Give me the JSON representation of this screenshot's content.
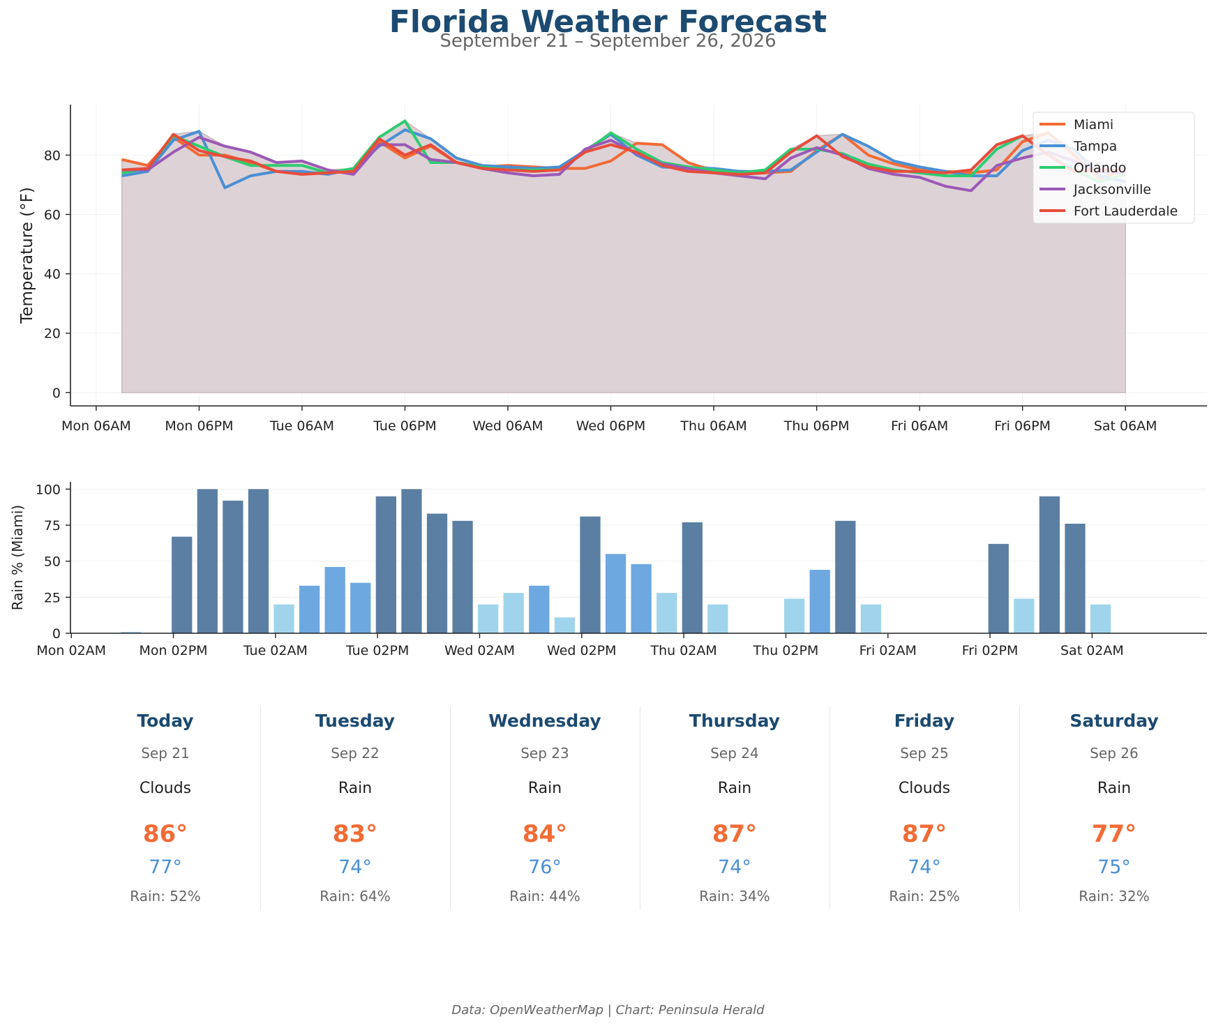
{
  "header": {
    "title": "Florida Weather Forecast",
    "subtitle": "September 21 – September 26, 2026"
  },
  "colors": {
    "Miami": "#f26b35",
    "Tampa": "#4a8fd4",
    "Orlando": "#2ecc71",
    "Jacksonville": "#9b59b6",
    "Fort Lauderdale": "#e74c3c",
    "area_fill": "#dbd1d4",
    "rain_high": "#5a7fa3",
    "rain_mid": "#6ea8e0",
    "rain_low": "#a0d4ec",
    "title": "#1c4a70"
  },
  "chart_data": [
    {
      "type": "line",
      "ylabel": "Temperature (°F)",
      "x_unit": "hours since Mon 00:00",
      "x_ticks": [
        {
          "x": 6,
          "label": "Mon 06AM"
        },
        {
          "x": 18,
          "label": "Mon 06PM"
        },
        {
          "x": 30,
          "label": "Tue 06AM"
        },
        {
          "x": 42,
          "label": "Tue 06PM"
        },
        {
          "x": 54,
          "label": "Wed 06AM"
        },
        {
          "x": 66,
          "label": "Wed 06PM"
        },
        {
          "x": 78,
          "label": "Thu 06AM"
        },
        {
          "x": 90,
          "label": "Thu 06PM"
        },
        {
          "x": 102,
          "label": "Fri 06AM"
        },
        {
          "x": 114,
          "label": "Fri 06PM"
        },
        {
          "x": 126,
          "label": "Sat 06AM"
        }
      ],
      "xlim": [
        3,
        135.5
      ],
      "y_ticks": [
        0,
        20,
        40,
        60,
        80
      ],
      "ylim": [
        -4.5,
        97
      ],
      "legend_position": "top-right",
      "grid": true,
      "x": [
        9,
        12,
        15,
        18,
        21,
        24,
        27,
        30,
        33,
        36,
        39,
        42,
        45,
        48,
        51,
        54,
        57,
        60,
        63,
        66,
        69,
        72,
        75,
        78,
        81,
        84,
        87,
        90,
        93,
        96,
        99,
        102,
        105,
        108,
        111,
        114,
        117,
        120,
        123,
        126
      ],
      "series": [
        {
          "name": "Miami",
          "values": [
            78.5,
            76.5,
            86,
            80,
            80,
            77.5,
            74.5,
            74,
            74,
            74.5,
            84.5,
            79,
            83,
            77.5,
            76,
            76.5,
            76,
            75.5,
            75.5,
            78,
            84,
            83.5,
            77.5,
            74.5,
            74.5,
            74,
            74.5,
            81.5,
            87,
            80,
            77,
            75,
            74.5,
            74,
            75,
            84.5,
            87.5,
            80,
            72,
            75
          ]
        },
        {
          "name": "Tampa",
          "values": [
            73,
            74.5,
            85,
            88,
            69,
            73,
            74.5,
            74.5,
            73.5,
            75.5,
            83,
            88.5,
            85.5,
            79,
            76.5,
            76,
            75.5,
            76,
            81.5,
            87,
            80,
            76,
            75.5,
            75.5,
            74.5,
            74.5,
            75,
            81,
            87,
            83,
            78,
            76,
            74.5,
            73,
            73,
            81.5,
            85,
            82,
            73,
            71
          ]
        },
        {
          "name": "Orlando",
          "values": [
            74,
            75.5,
            86.5,
            83,
            79.5,
            76.5,
            76.5,
            76.5,
            74,
            75.5,
            86,
            91.5,
            77.5,
            77.5,
            76,
            75,
            75,
            75,
            81,
            87.5,
            82,
            77.5,
            76,
            75,
            74,
            75,
            82,
            82,
            80.5,
            77,
            75,
            74,
            73,
            73,
            82,
            86.5,
            80,
            75,
            71,
            73.5
          ]
        },
        {
          "name": "Jacksonville",
          "values": [
            75,
            75,
            81,
            86,
            83,
            81,
            77.5,
            78,
            75,
            73.5,
            83.5,
            83.5,
            78.5,
            77.5,
            75.5,
            74,
            73,
            73.5,
            82,
            85,
            80.5,
            77,
            75.5,
            74,
            73,
            72,
            79,
            82.5,
            80,
            75.5,
            73.5,
            72.5,
            69.5,
            68,
            76.5,
            79,
            81,
            78,
            74.5,
            74
          ]
        },
        {
          "name": "Fort Lauderdale",
          "values": [
            75,
            75.5,
            87,
            81.5,
            79.5,
            78,
            74.5,
            73.5,
            74,
            74.5,
            85.5,
            80,
            83.5,
            77.5,
            75.5,
            75,
            74.5,
            75,
            81,
            83.5,
            81,
            76.5,
            74.5,
            74,
            73.5,
            74,
            81,
            86.5,
            79.5,
            76,
            74.5,
            74.5,
            74,
            75,
            83.5,
            86.5,
            80,
            74.5,
            75,
            75
          ]
        }
      ]
    },
    {
      "type": "bar",
      "ylabel": "Rain % (Miami)",
      "x_unit": "hours since Mon 00:00",
      "x_ticks": [
        {
          "x": 2,
          "label": "Mon 02AM"
        },
        {
          "x": 14,
          "label": "Mon 02PM"
        },
        {
          "x": 26,
          "label": "Tue 02AM"
        },
        {
          "x": 38,
          "label": "Tue 02PM"
        },
        {
          "x": 50,
          "label": "Wed 02AM"
        },
        {
          "x": 62,
          "label": "Wed 02PM"
        },
        {
          "x": 74,
          "label": "Thu 02AM"
        },
        {
          "x": 86,
          "label": "Thu 02PM"
        },
        {
          "x": 98,
          "label": "Fri 02AM"
        },
        {
          "x": 110,
          "label": "Fri 02PM"
        },
        {
          "x": 122,
          "label": "Sat 02AM"
        }
      ],
      "xlim": [
        1.9,
        135.5
      ],
      "y_ticks": [
        0,
        25,
        50,
        75,
        100
      ],
      "ylim": [
        0,
        105
      ],
      "grid": true,
      "x": [
        9,
        12,
        15,
        18,
        21,
        24,
        27,
        30,
        33,
        36,
        39,
        42,
        45,
        48,
        51,
        54,
        57,
        60,
        63,
        66,
        69,
        72,
        75,
        78,
        81,
        84,
        87,
        90,
        93,
        96,
        99,
        102,
        105,
        108,
        111,
        114,
        117,
        120,
        123,
        126
      ],
      "values": [
        1,
        0,
        67,
        100,
        92,
        100,
        20,
        33,
        46,
        35,
        95,
        100,
        83,
        78,
        20,
        28,
        33,
        11,
        81,
        55,
        48,
        28,
        77,
        20,
        0,
        0,
        24,
        44,
        78,
        20,
        0,
        0,
        0,
        0,
        62,
        24,
        95,
        76,
        20,
        0
      ],
      "color_rule": "dark if >= 60, mid if >= 30, light otherwise"
    }
  ],
  "forecast": [
    {
      "day": "Today",
      "date": "Sep 21",
      "condition": "Clouds",
      "high": "86°",
      "low": "77°",
      "rain": "Rain: 52%"
    },
    {
      "day": "Tuesday",
      "date": "Sep 22",
      "condition": "Rain",
      "high": "83°",
      "low": "74°",
      "rain": "Rain: 64%"
    },
    {
      "day": "Wednesday",
      "date": "Sep 23",
      "condition": "Rain",
      "high": "84°",
      "low": "76°",
      "rain": "Rain: 44%"
    },
    {
      "day": "Thursday",
      "date": "Sep 24",
      "condition": "Rain",
      "high": "87°",
      "low": "74°",
      "rain": "Rain: 34%"
    },
    {
      "day": "Friday",
      "date": "Sep 25",
      "condition": "Clouds",
      "high": "87°",
      "low": "74°",
      "rain": "Rain: 25%"
    },
    {
      "day": "Saturday",
      "date": "Sep 26",
      "condition": "Rain",
      "high": "77°",
      "low": "75°",
      "rain": "Rain: 32%"
    }
  ],
  "footer": "Data: OpenWeatherMap | Chart: Peninsula Herald"
}
